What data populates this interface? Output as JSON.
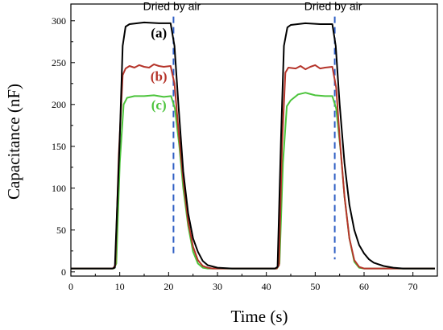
{
  "chart_data": {
    "type": "line",
    "title": "",
    "xlabel": "Time (s)",
    "ylabel": "Capacitance (nF)",
    "xlim": [
      0,
      75
    ],
    "ylim": [
      -5,
      320
    ],
    "x_ticks": [
      "0",
      "10",
      "20",
      "30",
      "40",
      "50",
      "60",
      "70"
    ],
    "y_ticks": [
      "0",
      "50",
      "100",
      "150",
      "200",
      "250",
      "300"
    ],
    "grid": false,
    "legend": "none",
    "series": [
      {
        "name": "(a)",
        "color": "#000000",
        "points": [
          [
            0,
            4
          ],
          [
            8.5,
            4
          ],
          [
            9,
            5
          ],
          [
            10,
            160
          ],
          [
            10.6,
            270
          ],
          [
            11.2,
            293
          ],
          [
            12,
            296
          ],
          [
            15,
            298
          ],
          [
            18,
            297
          ],
          [
            20.4,
            297
          ],
          [
            21.2,
            270
          ],
          [
            22,
            200
          ],
          [
            23,
            120
          ],
          [
            24,
            70
          ],
          [
            25,
            40
          ],
          [
            26,
            24
          ],
          [
            27,
            13
          ],
          [
            28,
            8
          ],
          [
            30,
            5
          ],
          [
            33,
            4
          ],
          [
            41.8,
            4
          ],
          [
            42.3,
            6
          ],
          [
            43,
            160
          ],
          [
            43.6,
            270
          ],
          [
            44.3,
            292
          ],
          [
            45,
            295
          ],
          [
            48,
            297
          ],
          [
            51,
            296
          ],
          [
            53.5,
            296
          ],
          [
            54.2,
            270
          ],
          [
            55,
            200
          ],
          [
            56,
            130
          ],
          [
            57,
            80
          ],
          [
            58,
            50
          ],
          [
            59,
            32
          ],
          [
            60,
            22
          ],
          [
            61,
            15
          ],
          [
            62,
            11
          ],
          [
            64,
            7
          ],
          [
            66,
            5
          ],
          [
            68,
            4
          ],
          [
            74.5,
            4
          ]
        ]
      },
      {
        "name": "(b)",
        "color": "#b5342a",
        "points": [
          [
            0,
            4
          ],
          [
            8.6,
            4
          ],
          [
            9.1,
            8
          ],
          [
            9.8,
            140
          ],
          [
            10.6,
            235
          ],
          [
            11.2,
            243
          ],
          [
            12,
            246
          ],
          [
            13,
            244
          ],
          [
            14,
            247
          ],
          [
            15,
            245
          ],
          [
            16,
            244
          ],
          [
            17,
            248
          ],
          [
            18,
            246
          ],
          [
            19,
            245
          ],
          [
            20.4,
            246
          ],
          [
            21.2,
            225
          ],
          [
            22,
            170
          ],
          [
            23,
            110
          ],
          [
            24,
            60
          ],
          [
            25,
            30
          ],
          [
            26,
            14
          ],
          [
            27,
            7
          ],
          [
            28,
            5
          ],
          [
            29,
            4
          ],
          [
            42.1,
            4
          ],
          [
            42.6,
            8
          ],
          [
            43.2,
            150
          ],
          [
            43.9,
            238
          ],
          [
            44.5,
            244
          ],
          [
            46,
            243
          ],
          [
            47,
            246
          ],
          [
            48,
            242
          ],
          [
            49,
            245
          ],
          [
            50,
            247
          ],
          [
            51,
            243
          ],
          [
            52,
            244
          ],
          [
            53.5,
            245
          ],
          [
            54.3,
            220
          ],
          [
            55,
            160
          ],
          [
            56,
            90
          ],
          [
            57,
            40
          ],
          [
            58,
            14
          ],
          [
            59,
            6
          ],
          [
            60,
            4
          ],
          [
            74.5,
            4
          ]
        ]
      },
      {
        "name": "(c)",
        "color": "#4cc43c",
        "points": [
          [
            0,
            4
          ],
          [
            8.8,
            4
          ],
          [
            9.3,
            10
          ],
          [
            10,
            130
          ],
          [
            10.8,
            200
          ],
          [
            11.5,
            208
          ],
          [
            13,
            210
          ],
          [
            15,
            210
          ],
          [
            17,
            211
          ],
          [
            19,
            209
          ],
          [
            20.5,
            210
          ],
          [
            21.3,
            195
          ],
          [
            22.2,
            150
          ],
          [
            23,
            100
          ],
          [
            24,
            55
          ],
          [
            25,
            24
          ],
          [
            26,
            10
          ],
          [
            27,
            5
          ],
          [
            28,
            4
          ],
          [
            42.2,
            4
          ],
          [
            42.7,
            10
          ],
          [
            43.4,
            130
          ],
          [
            44.2,
            198
          ],
          [
            45,
            205
          ],
          [
            46.5,
            212
          ],
          [
            48,
            214
          ],
          [
            50,
            211
          ],
          [
            52,
            210
          ],
          [
            53.5,
            210
          ],
          [
            54.3,
            195
          ],
          [
            55.2,
            145
          ],
          [
            56,
            90
          ],
          [
            57,
            40
          ],
          [
            58,
            12
          ],
          [
            59,
            5
          ],
          [
            60,
            4
          ],
          [
            74.5,
            4
          ]
        ]
      }
    ],
    "annotations": [
      {
        "text": "Dried by air",
        "x": 21,
        "y": 313
      },
      {
        "text": "Dried by air",
        "x": 54,
        "y": 313
      }
    ],
    "markers": [
      {
        "x": 21,
        "y_from": 18,
        "y_to": 305
      },
      {
        "x": 54,
        "y_from": 15,
        "y_to": 305
      }
    ],
    "series_labels": [
      {
        "text": "(a)",
        "x": 18,
        "y": 280,
        "color": "#000000"
      },
      {
        "text": "(b)",
        "x": 18,
        "y": 228,
        "color": "#b5342a"
      },
      {
        "text": "(c)",
        "x": 18,
        "y": 194,
        "color": "#4cc43c"
      }
    ]
  }
}
